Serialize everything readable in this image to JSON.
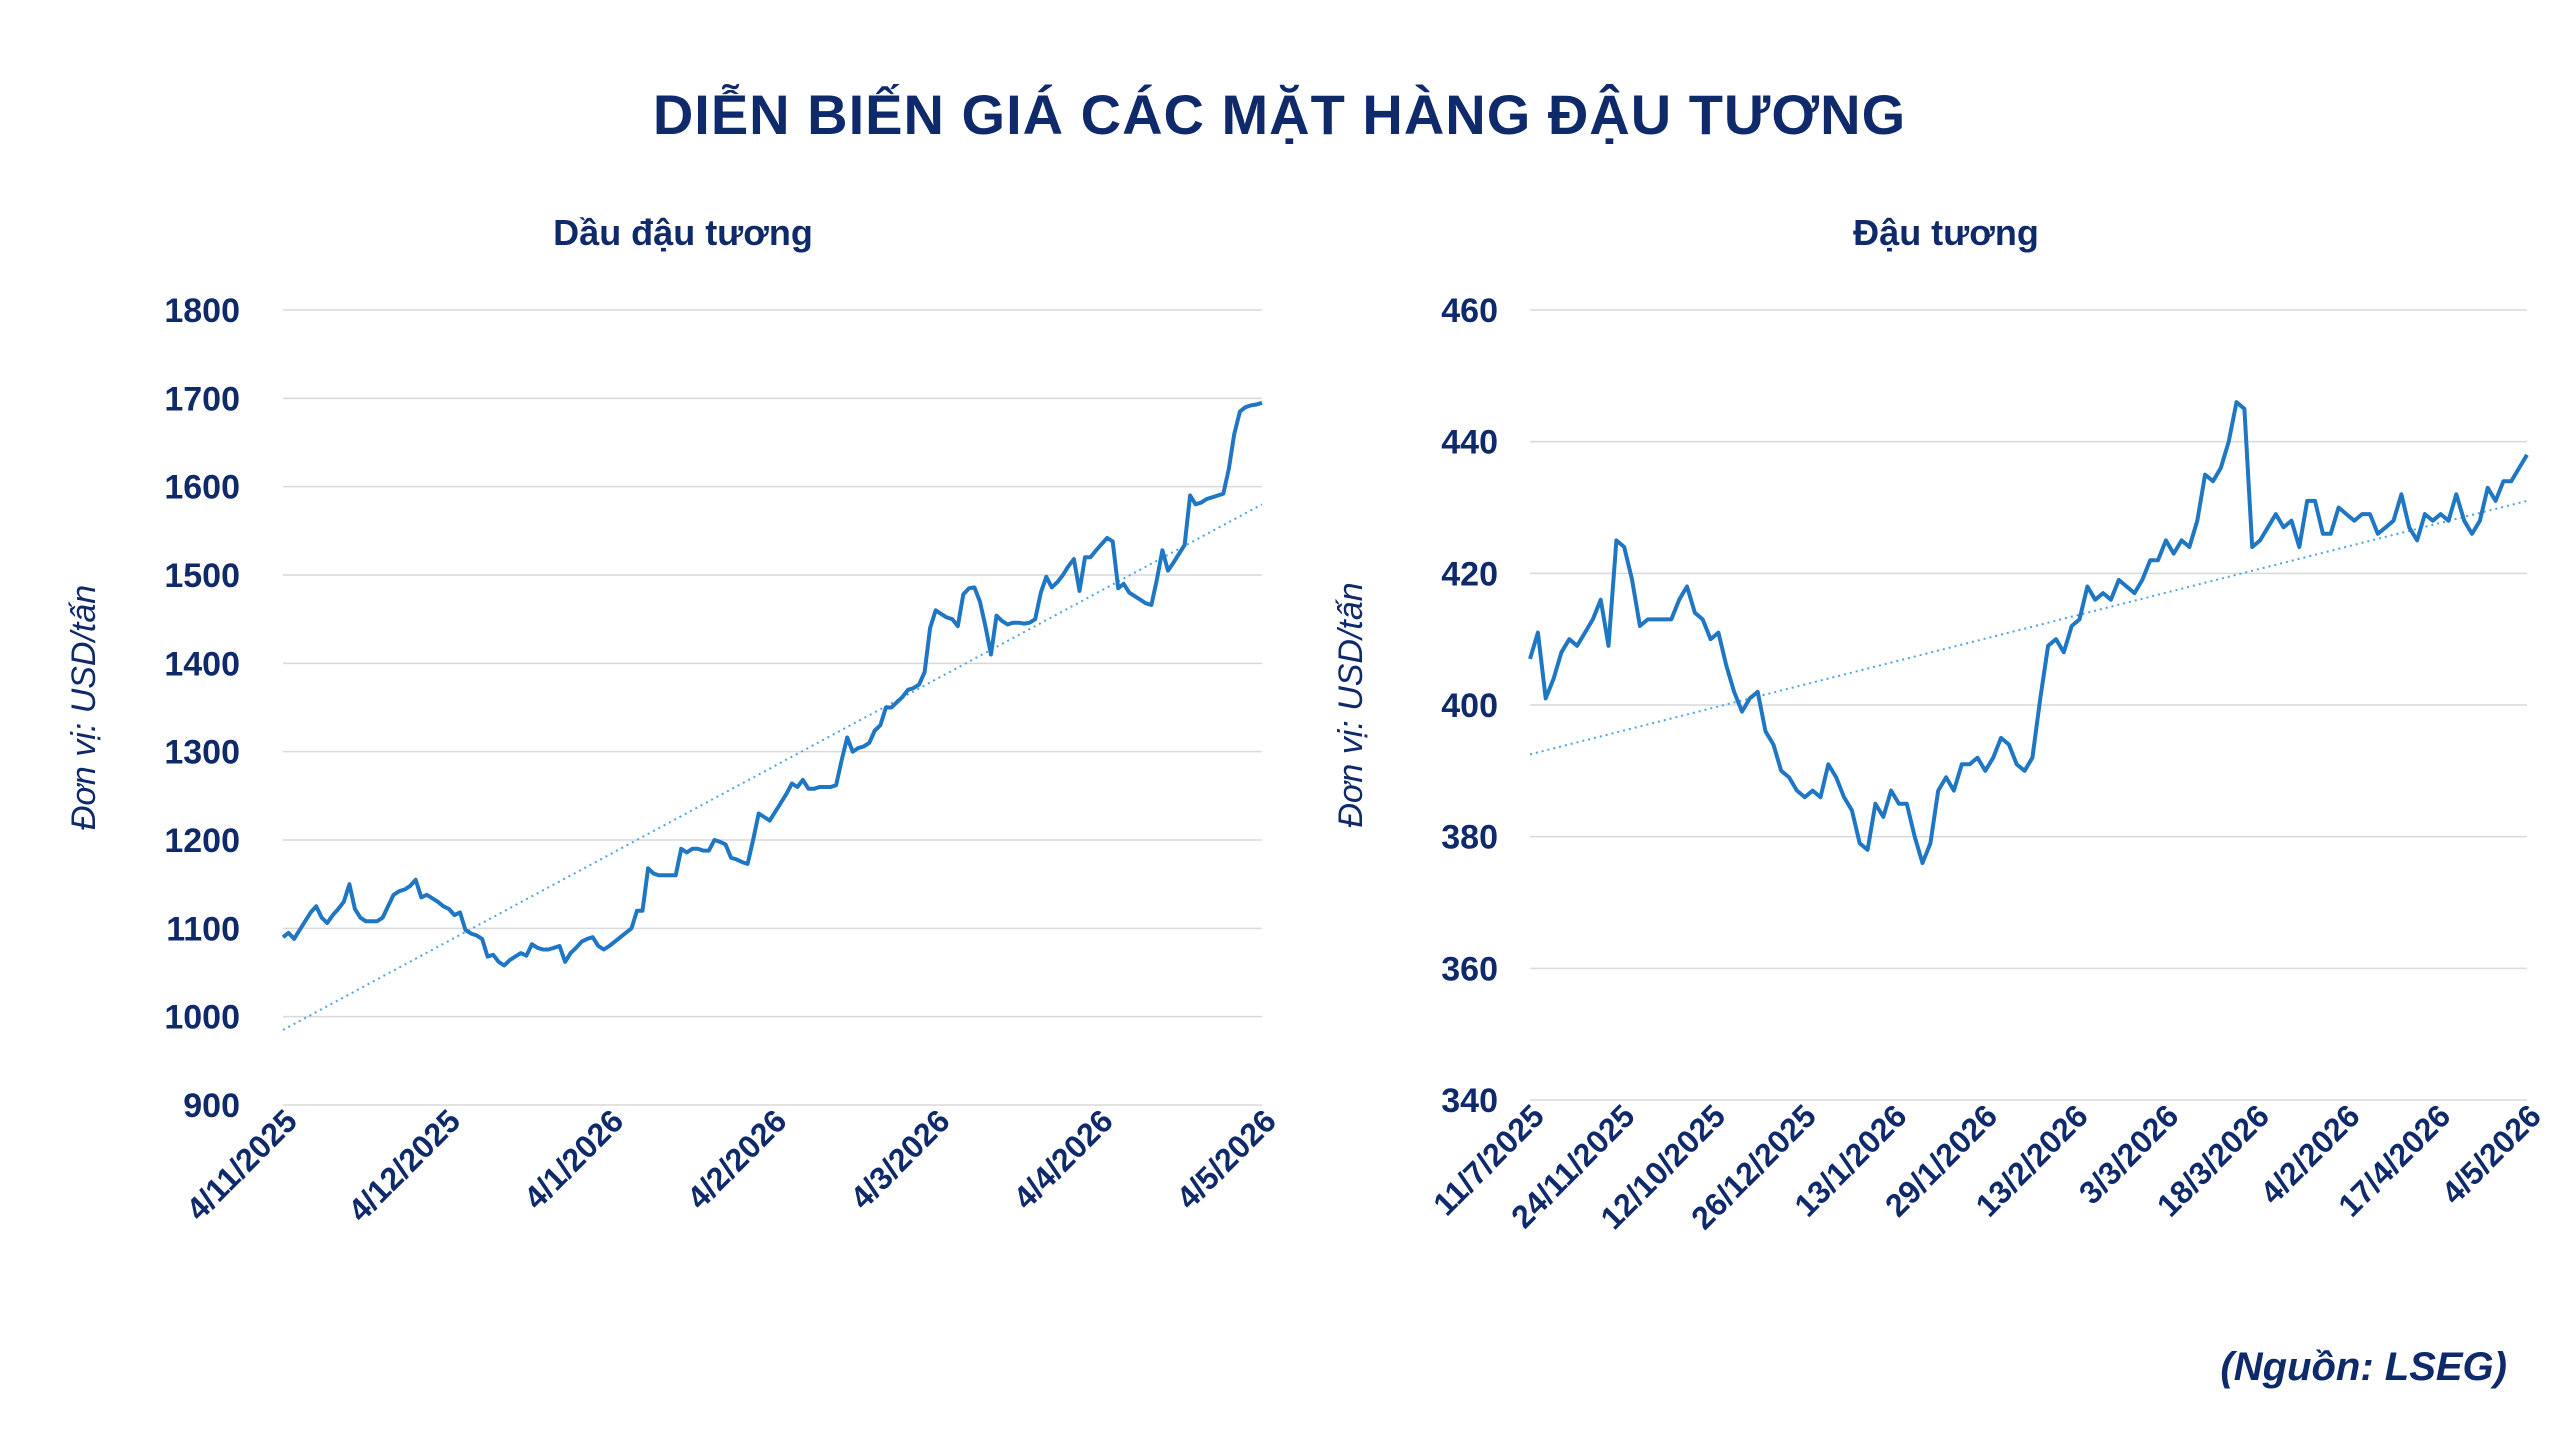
{
  "title": "DIỄN BIẾN GIÁ CÁC MẶT HÀNG ĐẬU TƯƠNG",
  "source": "(Nguồn: LSEG)",
  "colors": {
    "text": "#0f2a6b",
    "line": "#1f77c4",
    "trend": "#4da3e0",
    "grid": "#d9d9d9"
  },
  "chart_data": [
    {
      "type": "line",
      "title": "Dầu đậu tương",
      "ylabel": "Đơn vị: USD/tấn",
      "xlabel": "",
      "ylim": [
        900,
        1800
      ],
      "yticks": [
        900,
        1000,
        1100,
        1200,
        1300,
        1400,
        1500,
        1600,
        1700,
        1800
      ],
      "xticks": [
        "4/11/2025",
        "4/12/2025",
        "4/1/2026",
        "4/2/2026",
        "4/3/2026",
        "4/4/2026",
        "4/5/2026"
      ],
      "grid": true,
      "trendline": {
        "type": "linear",
        "start": 985,
        "end": 1580
      },
      "series": [
        {
          "values": [
            1090,
            1095,
            1088,
            1098,
            1108,
            1118,
            1125,
            1112,
            1106,
            1115,
            1122,
            1130,
            1150,
            1122,
            1112,
            1108,
            1108,
            1108,
            1112,
            1125,
            1138,
            1142,
            1144,
            1148,
            1155,
            1135,
            1138,
            1134,
            1130,
            1125,
            1122,
            1115,
            1118,
            1098,
            1094,
            1092,
            1088,
            1068,
            1070,
            1062,
            1058,
            1064,
            1068,
            1072,
            1069,
            1082,
            1078,
            1076,
            1076,
            1078,
            1080,
            1062,
            1072,
            1078,
            1085,
            1088,
            1090,
            1080,
            1076,
            1080,
            1085,
            1090,
            1095,
            1100,
            1120,
            1120,
            1168,
            1162,
            1160,
            1160,
            1160,
            1160,
            1190,
            1186,
            1190,
            1190,
            1188,
            1188,
            1200,
            1198,
            1195,
            1180,
            1178,
            1175,
            1173,
            1200,
            1230,
            1226,
            1222,
            1232,
            1242,
            1252,
            1264,
            1260,
            1268,
            1258,
            1258,
            1260,
            1260,
            1260,
            1262,
            1290,
            1316,
            1300,
            1304,
            1306,
            1310,
            1324,
            1330,
            1350,
            1350,
            1356,
            1362,
            1370,
            1372,
            1376,
            1390,
            1440,
            1460,
            1456,
            1452,
            1450,
            1442,
            1478,
            1485,
            1486,
            1470,
            1442,
            1410,
            1454,
            1448,
            1444,
            1446,
            1446,
            1445,
            1446,
            1450,
            1480,
            1498,
            1486,
            1492,
            1500,
            1510,
            1518,
            1482,
            1520,
            1520,
            1528,
            1535,
            1542,
            1538,
            1485,
            1490,
            1480,
            1476,
            1472,
            1468,
            1466,
            1495,
            1528,
            1505,
            1514,
            1524,
            1534,
            1590,
            1580,
            1582,
            1586,
            1588,
            1590,
            1592,
            1620,
            1660,
            1685,
            1690,
            1692,
            1693,
            1695
          ]
        }
      ]
    },
    {
      "type": "line",
      "title": "Đậu tương",
      "ylabel": "Đơn vị: USD/tấn",
      "xlabel": "",
      "ylim": [
        340,
        460
      ],
      "yticks": [
        340,
        360,
        380,
        400,
        420,
        440,
        460
      ],
      "xticks": [
        "11/7/2025",
        "24/11/2025",
        "12/10/2025",
        "26/12/2025",
        "13/1/2026",
        "29/1/2026",
        "13/2/2026",
        "3/3/2026",
        "18/3/2026",
        "4/2/2026",
        "17/4/2026",
        "4/5/2026"
      ],
      "grid": true,
      "trendline": {
        "type": "linear",
        "start": 392.5,
        "end": 431
      },
      "series": [
        {
          "values": [
            407,
            411,
            401,
            404,
            408,
            410,
            409,
            411,
            413,
            416,
            409,
            425,
            424,
            419,
            412,
            413,
            413,
            413,
            413,
            416,
            418,
            414,
            413,
            410,
            411,
            406,
            402,
            399,
            401,
            402,
            396,
            394,
            390,
            389,
            387,
            386,
            387,
            386,
            391,
            389,
            386,
            384,
            379,
            378,
            385,
            383,
            387,
            385,
            385,
            380,
            376,
            379,
            387,
            389,
            387,
            391,
            391,
            392,
            390,
            392,
            395,
            394,
            391,
            390,
            392,
            401,
            409,
            410,
            408,
            412,
            413,
            418,
            416,
            417,
            416,
            419,
            418,
            417,
            419,
            422,
            422,
            425,
            423,
            425,
            424,
            428,
            435,
            434,
            436,
            440,
            446,
            445,
            424,
            425,
            427,
            429,
            427,
            428,
            424,
            431,
            431,
            426,
            426,
            430,
            429,
            428,
            429,
            429,
            426,
            427,
            428,
            432,
            427,
            425,
            429,
            428,
            429,
            428,
            432,
            428,
            426,
            428,
            433,
            431,
            434,
            434,
            436,
            438
          ]
        }
      ]
    }
  ]
}
